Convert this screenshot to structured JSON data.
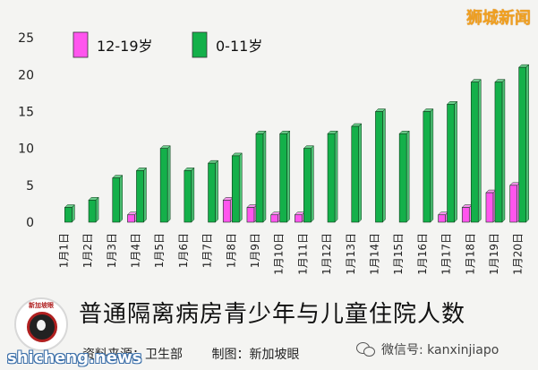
{
  "brand": "狮城新闻",
  "title": "普通隔离病房青少年与儿童住院人数",
  "source_text": "资料来源：卫生部",
  "made_by_text": "制图：新加坡眼",
  "wechat_text": "微信号: kanxinjiapo",
  "site_text": "shicheng.news",
  "logo_text": "新加坡眼",
  "colors": {
    "teen": "#ff55ee",
    "child": "#14b04a",
    "background": "#f4f4f2"
  },
  "chart_data": {
    "type": "bar",
    "categories": [
      "1月1日",
      "1月2日",
      "1月3日",
      "1月4日",
      "1月5日",
      "1月6日",
      "1月7日",
      "1月8日",
      "1月9日",
      "1月10日",
      "1月11日",
      "1月12日",
      "1月13日",
      "1月14日",
      "1月15日",
      "1月16日",
      "1月17日",
      "1月18日",
      "1月19日",
      "1月20日"
    ],
    "series": [
      {
        "name": "12-19岁",
        "values": [
          0,
          0,
          0,
          1,
          0,
          0,
          0,
          3,
          2,
          1,
          1,
          0,
          0,
          0,
          0,
          0,
          1,
          2,
          4,
          5
        ]
      },
      {
        "name": "0-11岁",
        "values": [
          2,
          3,
          6,
          7,
          10,
          7,
          8,
          9,
          12,
          12,
          10,
          12,
          13,
          15,
          12,
          15,
          16,
          19,
          19,
          21
        ]
      }
    ],
    "y_ticks": [
      0,
      5,
      10,
      15,
      20,
      25
    ],
    "ylim": [
      0,
      26
    ],
    "legend_position": "top-left",
    "grid": false
  }
}
